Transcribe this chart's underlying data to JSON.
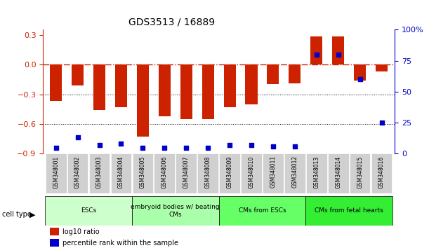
{
  "title": "GDS3513 / 16889",
  "samples": [
    "GSM348001",
    "GSM348002",
    "GSM348003",
    "GSM348004",
    "GSM348005",
    "GSM348006",
    "GSM348007",
    "GSM348008",
    "GSM348009",
    "GSM348010",
    "GSM348011",
    "GSM348012",
    "GSM348013",
    "GSM348014",
    "GSM348015",
    "GSM348016"
  ],
  "log10_ratio": [
    -0.37,
    -0.21,
    -0.46,
    -0.43,
    -0.73,
    -0.52,
    -0.55,
    -0.55,
    -0.43,
    -0.4,
    -0.2,
    -0.19,
    0.28,
    0.28,
    -0.16,
    -0.07
  ],
  "percentile_rank": [
    5,
    13,
    7,
    8,
    5,
    5,
    5,
    5,
    7,
    7,
    6,
    6,
    80,
    80,
    60,
    25
  ],
  "cell_types": [
    {
      "label": "ESCs",
      "start": 0,
      "end": 4,
      "color": "#ccffcc"
    },
    {
      "label": "embryoid bodies w/ beating\nCMs",
      "start": 4,
      "end": 8,
      "color": "#aaffaa"
    },
    {
      "label": "CMs from ESCs",
      "start": 8,
      "end": 12,
      "color": "#66ff66"
    },
    {
      "label": "CMs from fetal hearts",
      "start": 12,
      "end": 16,
      "color": "#33ee33"
    }
  ],
  "bar_color": "#cc2200",
  "dot_color": "#0000cc",
  "ylim_left": [
    -0.9,
    0.35
  ],
  "ylim_right": [
    0,
    100
  ],
  "yticks_left": [
    -0.9,
    -0.6,
    -0.3,
    0,
    0.3
  ],
  "ytick_labels_right": [
    "0",
    "25",
    "50",
    "75",
    "100%"
  ],
  "yticks_right": [
    0,
    25,
    50,
    75,
    100
  ],
  "hline_y": 0,
  "dotted_lines": [
    -0.3,
    -0.6
  ],
  "background_color": "#ffffff"
}
